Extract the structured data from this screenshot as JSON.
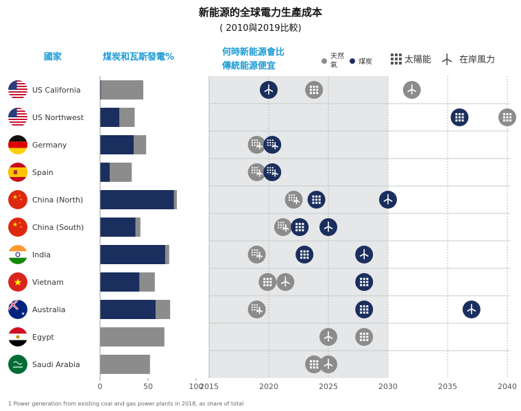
{
  "header": {
    "title": "新能源的全球電力生產成本",
    "subtitle": "( 2010與2019比較)",
    "col_countries": "國家",
    "col_share": "煤炭和瓦斯發電%",
    "col_when_line1": "何時新能源會比",
    "col_when_line2": "傳統能源便宜"
  },
  "legend": {
    "gas_line1": "天然",
    "gas_line2": "氣",
    "coal": "煤炭",
    "solar": "太陽能",
    "wind": "在岸風力"
  },
  "colors": {
    "coal": "#1b2f5e",
    "gas": "#8c8c8c",
    "panel": "#e6e7e9",
    "header_blue": "#1a9ad6"
  },
  "footnote": "1 Power generation from existing coal and gas power plants in 2018, as share of total",
  "chart_data": [
    {
      "type": "bar",
      "stacked": true,
      "orientation": "horizontal",
      "title": "煤炭和瓦斯發電%",
      "categories": [
        "US California",
        "US Northwest",
        "Germany",
        "Spain",
        "China (North)",
        "China (South)",
        "India",
        "Vietnam",
        "Australia",
        "Egypt",
        "Saudi Arabia"
      ],
      "series": [
        {
          "name": "煤炭",
          "values": [
            1,
            20,
            35,
            10,
            77,
            37,
            68,
            41,
            58,
            0,
            0
          ]
        },
        {
          "name": "天然氣",
          "values": [
            44,
            16,
            13,
            23,
            3,
            5,
            4,
            16,
            15,
            67,
            52
          ]
        }
      ],
      "xlim": [
        0,
        100
      ],
      "xticks": [
        "0",
        "50",
        "100"
      ]
    },
    {
      "type": "scatter",
      "title": "何時新能源會比傳統能源便宜",
      "xlim": [
        2015,
        2040
      ],
      "xticks": [
        "2015",
        "2020",
        "2025",
        "2030",
        "2035",
        "2040"
      ],
      "shaded_range": [
        2015,
        2030
      ],
      "rows": [
        "US California",
        "US Northwest",
        "Germany",
        "Spain",
        "China (North)",
        "China (South)",
        "India",
        "Vietnam",
        "Australia",
        "Egypt",
        "Saudi Arabia"
      ],
      "markers": [
        {
          "row": 0,
          "x": 2020.0,
          "tech": "wind",
          "vs": "coal"
        },
        {
          "row": 0,
          "x": 2023.8,
          "tech": "solar",
          "vs": "gas"
        },
        {
          "row": 0,
          "x": 2032.0,
          "tech": "wind",
          "vs": "gas"
        },
        {
          "row": 1,
          "x": 2036.0,
          "tech": "solar",
          "vs": "coal"
        },
        {
          "row": 1,
          "x": 2040.0,
          "tech": "solar",
          "vs": "gas"
        },
        {
          "row": 2,
          "x": 2019.0,
          "tech": "solar-wind",
          "vs": "gas"
        },
        {
          "row": 2,
          "x": 2020.3,
          "tech": "solar-wind",
          "vs": "coal"
        },
        {
          "row": 3,
          "x": 2019.0,
          "tech": "solar-wind",
          "vs": "gas"
        },
        {
          "row": 3,
          "x": 2020.3,
          "tech": "solar-wind",
          "vs": "coal"
        },
        {
          "row": 4,
          "x": 2022.1,
          "tech": "solar-wind",
          "vs": "gas"
        },
        {
          "row": 4,
          "x": 2024.0,
          "tech": "solar",
          "vs": "coal"
        },
        {
          "row": 4,
          "x": 2030.0,
          "tech": "wind",
          "vs": "coal"
        },
        {
          "row": 5,
          "x": 2021.2,
          "tech": "solar-wind",
          "vs": "gas"
        },
        {
          "row": 5,
          "x": 2022.6,
          "tech": "solar",
          "vs": "coal"
        },
        {
          "row": 5,
          "x": 2025.0,
          "tech": "wind",
          "vs": "coal"
        },
        {
          "row": 6,
          "x": 2019.0,
          "tech": "solar-wind",
          "vs": "gas"
        },
        {
          "row": 6,
          "x": 2023.0,
          "tech": "solar",
          "vs": "coal"
        },
        {
          "row": 6,
          "x": 2028.0,
          "tech": "wind",
          "vs": "coal"
        },
        {
          "row": 7,
          "x": 2019.9,
          "tech": "solar",
          "vs": "gas"
        },
        {
          "row": 7,
          "x": 2021.4,
          "tech": "wind",
          "vs": "gas"
        },
        {
          "row": 7,
          "x": 2028.0,
          "tech": "solar",
          "vs": "coal"
        },
        {
          "row": 8,
          "x": 2019.0,
          "tech": "solar-wind",
          "vs": "gas"
        },
        {
          "row": 8,
          "x": 2028.0,
          "tech": "solar",
          "vs": "coal"
        },
        {
          "row": 8,
          "x": 2037.0,
          "tech": "wind",
          "vs": "coal"
        },
        {
          "row": 9,
          "x": 2025.0,
          "tech": "wind",
          "vs": "gas"
        },
        {
          "row": 9,
          "x": 2028.0,
          "tech": "solar",
          "vs": "gas"
        },
        {
          "row": 10,
          "x": 2023.8,
          "tech": "solar",
          "vs": "gas"
        },
        {
          "row": 10,
          "x": 2025.0,
          "tech": "wind",
          "vs": "gas"
        }
      ]
    }
  ]
}
